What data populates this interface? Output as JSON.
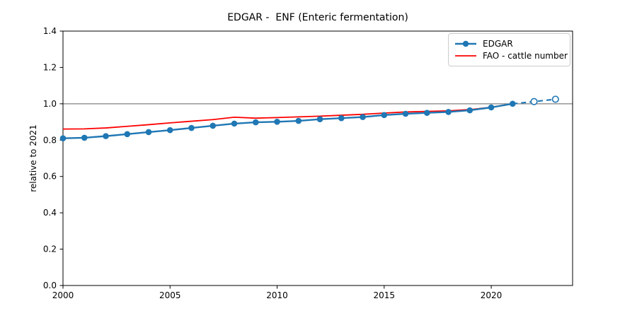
{
  "figure": {
    "background": "#ffffff"
  },
  "chart_data": {
    "type": "line",
    "title": "EDGAR -  ENF (Enteric fermentation)",
    "xlabel": "",
    "ylabel": "relative to 2021",
    "xlim": [
      2000,
      2023.8
    ],
    "ylim": [
      0.0,
      1.4
    ],
    "x_ticks": [
      2000,
      2005,
      2010,
      2015,
      2020
    ],
    "y_ticks": [
      0.0,
      0.2,
      0.4,
      0.6,
      0.8,
      1.0,
      1.2,
      1.4
    ],
    "grid": false,
    "reference_line": {
      "y": 1.0,
      "color": "#808080"
    },
    "legend": {
      "position": "upper right",
      "entries": [
        {
          "label": "EDGAR"
        },
        {
          "label": "FAO - cattle number"
        }
      ]
    },
    "series": [
      {
        "name": "EDGAR",
        "color": "#1f77b4",
        "style": "solid",
        "marker": "circle-filled",
        "x": [
          2000,
          2001,
          2002,
          2003,
          2004,
          2005,
          2006,
          2007,
          2008,
          2009,
          2010,
          2011,
          2012,
          2013,
          2014,
          2015,
          2016,
          2017,
          2018,
          2019,
          2020,
          2021
        ],
        "values": [
          0.81,
          0.813,
          0.822,
          0.833,
          0.844,
          0.855,
          0.867,
          0.879,
          0.891,
          0.898,
          0.901,
          0.906,
          0.915,
          0.921,
          0.927,
          0.938,
          0.945,
          0.95,
          0.955,
          0.964,
          0.98,
          1.0
        ],
        "projected": {
          "style": "dashed",
          "marker": "circle-open",
          "x": [
            2021,
            2022,
            2023
          ],
          "values": [
            1.0,
            1.012,
            1.025
          ]
        }
      },
      {
        "name": "FAO - cattle number",
        "color": "#ff0000",
        "style": "solid",
        "marker": "none",
        "x": [
          2000,
          2001,
          2002,
          2003,
          2004,
          2005,
          2006,
          2007,
          2008,
          2009,
          2010,
          2011,
          2012,
          2013,
          2014,
          2015,
          2016,
          2017,
          2018,
          2019,
          2020,
          2021
        ],
        "values": [
          0.861,
          0.862,
          0.867,
          0.876,
          0.885,
          0.895,
          0.904,
          0.913,
          0.926,
          0.921,
          0.924,
          0.928,
          0.932,
          0.937,
          0.942,
          0.949,
          0.955,
          0.958,
          0.961,
          0.968,
          0.981,
          1.0
        ]
      }
    ]
  }
}
